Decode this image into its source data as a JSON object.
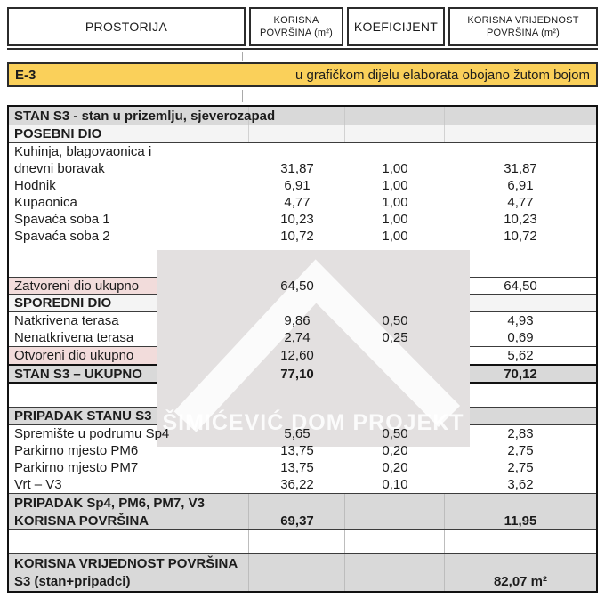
{
  "header": {
    "columns": [
      {
        "line1": "PROSTORIJA",
        "line2": ""
      },
      {
        "line1": "KORISNA",
        "line2": "POVRŠINA (m²)"
      },
      {
        "line1": "KOEFICIJENT",
        "line2": ""
      },
      {
        "line1": "KORISNA VRIJEDNOST",
        "line2": "POVRŠINA (m²)"
      }
    ]
  },
  "banner": {
    "code": "E-3",
    "note": "u grafičkom dijelu elaborata obojano žutom bojom"
  },
  "watermark": {
    "text": "ŠIMIĆEVIĆ DOM PROJEKT"
  },
  "colors": {
    "banner_yellow": "#FAD05A",
    "subtotal_pink": "#F2DCDB",
    "section_gray": "#D9D9D9",
    "section_light": "#F4F4F4",
    "border_dark": "#111111"
  },
  "table": {
    "rows": [
      {
        "type": "section-dark",
        "name": "row-stan-s3-header",
        "label": "STAN S3 - stan u prizemlju, sjeverozapad"
      },
      {
        "type": "section-light",
        "name": "row-posebni-dio",
        "label": "POSEBNI DIO"
      },
      {
        "type": "data",
        "name": "row-kuhinja-line1",
        "label": "Kuhinja, blagovaonica i",
        "area": "",
        "coef": "",
        "value": ""
      },
      {
        "type": "data",
        "name": "row-kuhinja-line2",
        "label": "dnevni boravak",
        "area": "31,87",
        "coef": "1,00",
        "value": "31,87"
      },
      {
        "type": "data",
        "name": "row-hodnik",
        "label": "Hodnik",
        "area": "6,91",
        "coef": "1,00",
        "value": "6,91"
      },
      {
        "type": "data",
        "name": "row-kupaonica",
        "label": "Kupaonica",
        "area": "4,77",
        "coef": "1,00",
        "value": "4,77"
      },
      {
        "type": "data",
        "name": "row-spavaca-soba-1",
        "label": "Spavaća soba 1",
        "area": "10,23",
        "coef": "1,00",
        "value": "10,23"
      },
      {
        "type": "data",
        "name": "row-spavaca-soba-2",
        "label": "Spavaća soba 2",
        "area": "10,72",
        "coef": "1,00",
        "value": "10,72"
      },
      {
        "type": "empty-tall",
        "name": "row-spacer"
      },
      {
        "type": "subtotal-bb",
        "name": "row-zatvoreni-ukupno",
        "label": "Zatvoreni dio ukupno",
        "area": "64,50",
        "coef": "",
        "value": "64,50"
      },
      {
        "type": "section-light",
        "name": "row-sporedni-dio",
        "label": "SPOREDNI DIO"
      },
      {
        "type": "data",
        "name": "row-natkrivena-terasa",
        "label": "Natkrivena terasa",
        "area": "9,86",
        "coef": "0,50",
        "value": "4,93"
      },
      {
        "type": "data",
        "name": "row-nenatkrivena-terasa",
        "label": "Nenatkrivena terasa",
        "area": "2,74",
        "coef": "0,25",
        "value": "0,69"
      },
      {
        "type": "subtotal",
        "name": "row-otvoreni-ukupno",
        "label": "Otvoreni dio ukupno",
        "area": "12,60",
        "coef": "",
        "value": "5,62"
      },
      {
        "type": "total",
        "name": "row-stan-s3-ukupno",
        "label": "STAN S3 – UKUPNO",
        "area": "77,10",
        "coef": "",
        "value": "70,12"
      },
      {
        "type": "empty",
        "name": "row-spacer"
      },
      {
        "type": "section-dark2",
        "name": "row-pripadak-header",
        "label": "PRIPADAK STANU S3"
      },
      {
        "type": "data",
        "name": "row-spremiste-sp4",
        "label": "Spremište u podrumu Sp4",
        "area": "5,65",
        "coef": "0,50",
        "value": "2,83"
      },
      {
        "type": "data",
        "name": "row-parkirno-pm6",
        "label": "Parkirno mjesto PM6",
        "area": "13,75",
        "coef": "0,20",
        "value": "2,75"
      },
      {
        "type": "data",
        "name": "row-parkirno-pm7",
        "label": "Parkirno mjesto PM7",
        "area": "13,75",
        "coef": "0,20",
        "value": "2,75"
      },
      {
        "type": "data",
        "name": "row-vrt-v3",
        "label": "Vrt – V3",
        "area": "36,22",
        "coef": "0,10",
        "value": "3,62"
      },
      {
        "type": "block",
        "name": "row-pripadak-korisna",
        "label1": "PRIPADAK  Sp4, PM6, PM7, V3",
        "label2": "KORISNA POVRŠINA",
        "area": "69,37",
        "value": "11,95"
      },
      {
        "type": "empty",
        "name": "row-spacer"
      },
      {
        "type": "final",
        "name": "row-korisna-vrijednost",
        "label1": "KORISNA VRIJEDNOST POVRŠINA",
        "label2": "S3 (stan+pripadci)",
        "area": "",
        "value": "82,07 m²"
      }
    ]
  }
}
